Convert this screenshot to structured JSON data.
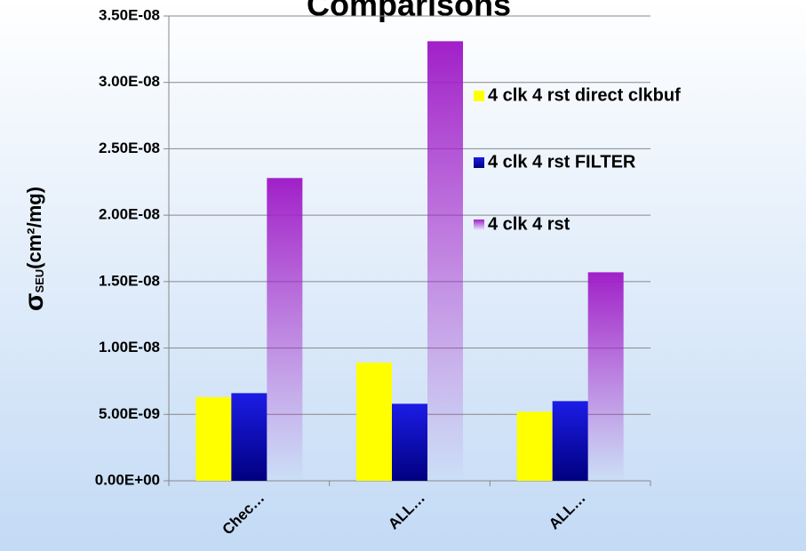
{
  "chart_data": {
    "type": "bar",
    "title": "Comparisons",
    "y_label": {
      "symbol": "σ",
      "subscript": "SEU",
      "unit": "(cm²/mg)"
    },
    "categories": [
      "Chec…",
      "ALL…",
      "ALL…"
    ],
    "series": [
      {
        "name": "4 clk 4 rst direct clkbuf",
        "color": "#ffff00",
        "values": [
          6.3e-09,
          8.9e-09,
          5.2e-09
        ]
      },
      {
        "name": "4 clk 4 rst FILTER",
        "color": "#1c1ce6",
        "values": [
          6.6e-09,
          5.8e-09,
          6e-09
        ]
      },
      {
        "name": "4 clk 4 rst",
        "color": "#a020c8",
        "values": [
          2.28e-08,
          3.31e-08,
          1.57e-08
        ]
      }
    ],
    "ylim": [
      0,
      3.5e-08
    ],
    "yticks": [
      {
        "value": 0,
        "label": "0.00E+00"
      },
      {
        "value": 5e-09,
        "label": "5.00E-09"
      },
      {
        "value": 1e-08,
        "label": "1.00E-08"
      },
      {
        "value": 1.5e-08,
        "label": "1.50E-08"
      },
      {
        "value": 2e-08,
        "label": "2.00E-08"
      },
      {
        "value": 2.5e-08,
        "label": "2.50E-08"
      },
      {
        "value": 3e-08,
        "label": "3.00E-08"
      },
      {
        "value": 3.5e-08,
        "label": "3.50E-08"
      }
    ],
    "grid": true,
    "legend": "right"
  }
}
